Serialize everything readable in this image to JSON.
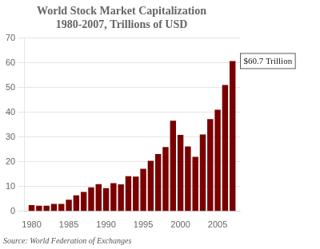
{
  "chart_data": {
    "type": "bar",
    "title": "World Stock Market Capitalization\n1980-2007, Trillions of USD",
    "x": [
      1980,
      1981,
      1982,
      1983,
      1984,
      1985,
      1986,
      1987,
      1988,
      1989,
      1990,
      1991,
      1992,
      1993,
      1994,
      1995,
      1996,
      1997,
      1998,
      1999,
      2000,
      2001,
      2002,
      2003,
      2004,
      2005,
      2006,
      2007
    ],
    "values": [
      2.5,
      2.3,
      2.3,
      3.0,
      3.0,
      4.7,
      6.5,
      7.8,
      9.7,
      11.0,
      9.4,
      11.4,
      10.9,
      14.2,
      14.0,
      17.2,
      20.4,
      23.1,
      26.0,
      36.6,
      30.9,
      26.2,
      22.0,
      31.0,
      37.2,
      41.0,
      51.0,
      60.7
    ],
    "color": "#7a0000",
    "xlim": [
      1979,
      2008
    ],
    "xticks": [
      1980,
      1985,
      1990,
      1995,
      2000,
      2005
    ],
    "ylim": [
      0,
      70
    ],
    "yticks": [
      0,
      10,
      20,
      30,
      40,
      50,
      60,
      70
    ],
    "grid": true,
    "annotation": "$60.7 Trillion",
    "source": "Source: World Federation of Exchanges"
  }
}
